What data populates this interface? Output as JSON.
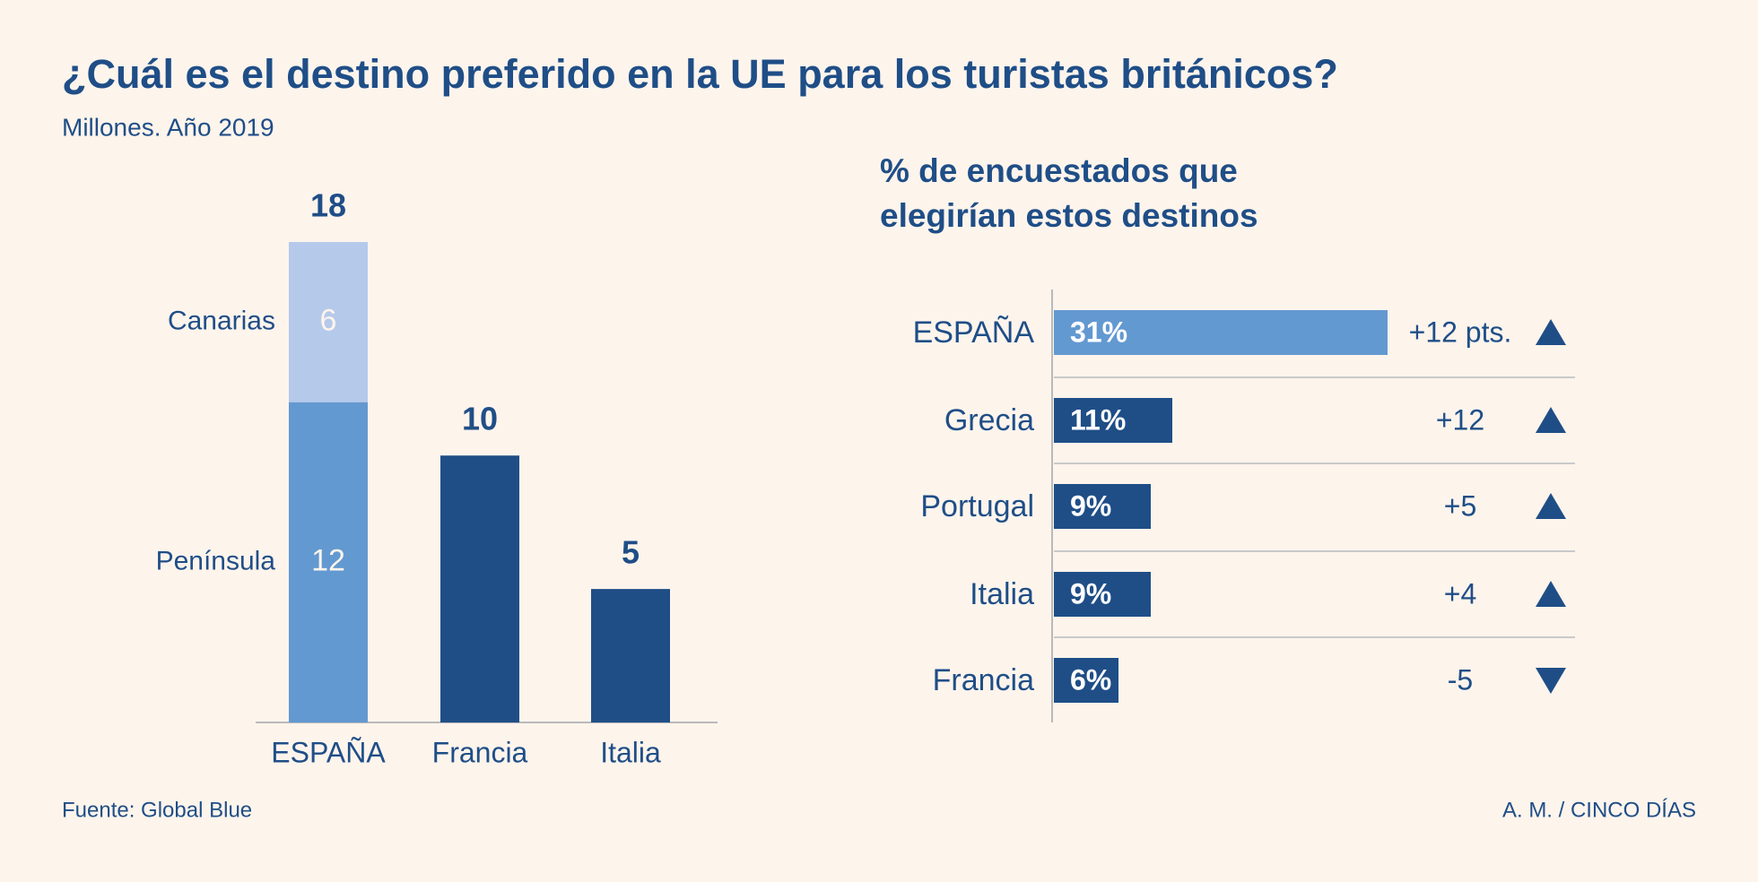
{
  "title": "¿Cuál es el destino preferido en la UE para los turistas británicos?",
  "subtitle": "Millones. Año 2019",
  "source": "Fuente: Global Blue",
  "credit": "A. M. / CINCO DÍAS",
  "chart_data": [
    {
      "type": "bar",
      "categories": [
        "ESPAÑA",
        "Francia",
        "Italia"
      ],
      "values": [
        18,
        10,
        5
      ],
      "color": "#1f4e87",
      "breakdown": [
        {
          "name": "Península",
          "value": 12,
          "color": "#6399d1"
        },
        {
          "name": "Canarias",
          "value": 6,
          "color": "#b5c9eb"
        }
      ]
    },
    {
      "type": "barh",
      "subtitle": [
        "% de encuestados que",
        "elegirían estos destinos"
      ],
      "categories": [
        "ESPAÑA",
        "Grecia",
        "Portugal",
        "Italia",
        "Francia"
      ],
      "values": [
        31,
        11,
        9,
        9,
        6
      ],
      "value_labels": [
        "31%",
        "11%",
        "9%",
        "9%",
        "6%"
      ],
      "colors": [
        "#6399d1",
        "#1f4e87",
        "#1f4e87",
        "#1f4e87",
        "#1f4e87"
      ],
      "changes": [
        12,
        12,
        5,
        4,
        -5
      ],
      "change_labels": [
        "+12 pts.",
        "+12",
        "+5",
        "+4",
        "-5"
      ]
    }
  ]
}
